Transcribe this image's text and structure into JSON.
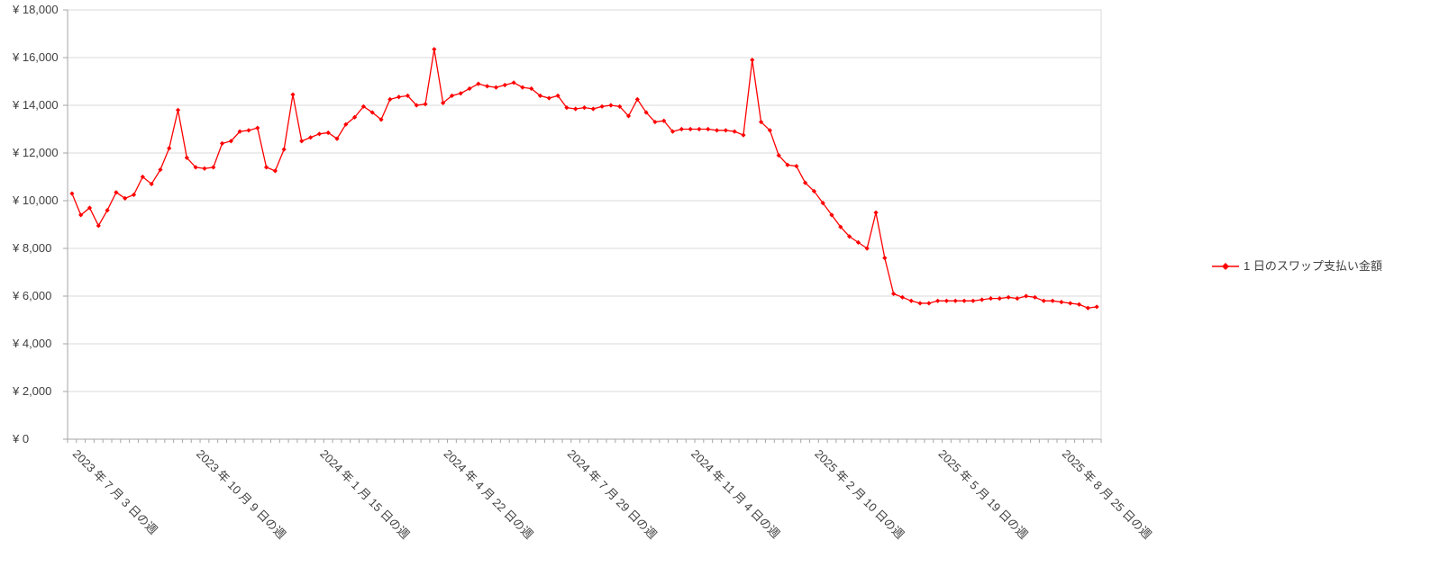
{
  "chart_data": {
    "type": "line",
    "title": "",
    "series": [
      {
        "name": "1 日のスワップ支払い金額",
        "color": "#ff0000",
        "marker": "diamond",
        "values": [
          10300,
          9400,
          9700,
          8950,
          9600,
          10350,
          10100,
          10250,
          11000,
          10700,
          11300,
          12200,
          13800,
          11800,
          11400,
          11350,
          11400,
          12400,
          12500,
          12900,
          12950,
          13050,
          11400,
          11250,
          12150,
          14450,
          12500,
          12650,
          12800,
          12850,
          12600,
          13200,
          13500,
          13950,
          13700,
          13400,
          14250,
          14350,
          14400,
          14000,
          14050,
          16350,
          14100,
          14400,
          14500,
          14700,
          14900,
          14800,
          14750,
          14850,
          14950,
          14750,
          14700,
          14400,
          14300,
          14400,
          13900,
          13850,
          13900,
          13850,
          13950,
          14000,
          13950,
          13550,
          14250,
          13700,
          13300,
          13350,
          12900,
          13000,
          13000,
          13000,
          13000,
          12950,
          12950,
          12900,
          12750,
          15900,
          13300,
          12950,
          11900,
          11500,
          11450,
          10750,
          10400,
          9900,
          9400,
          8900,
          8500,
          8250,
          8000,
          9500,
          7600,
          6100,
          5950,
          5800,
          5700,
          5700,
          5800,
          5800,
          5800,
          5800,
          5800,
          5850,
          5900,
          5900,
          5950,
          5900,
          6000,
          5950,
          5800,
          5800,
          5750,
          5700,
          5650,
          5500,
          5550
        ]
      }
    ],
    "x_axis": {
      "tick_labels": [
        "2023 年 7 月 3 日の週",
        "2023 年 10 月 9 日の週",
        "2024 年 1 月 15 日の週",
        "2024 年 4 月 22 日の週",
        "2024 年 7 月 29 日の週",
        "2024 年 11 月 4 日の週",
        "2025 年 2 月 10 日の週",
        "2025 年 5 月 19 日の週",
        "2025 年 8 月 25 日の週"
      ],
      "tick_label_indices": [
        0,
        14,
        28,
        42,
        56,
        70,
        84,
        98,
        112
      ],
      "n_points": 117,
      "label_rotation_deg": 45
    },
    "y_axis": {
      "min": 0,
      "max": 18000,
      "step": 2000,
      "tick_labels": [
        "¥ 0",
        "¥ 2,000",
        "¥ 4,000",
        "¥ 6,000",
        "¥ 8,000",
        "¥ 10,000",
        "¥ 12,000",
        "¥ 14,000",
        "¥ 16,000",
        "¥ 18,000"
      ]
    },
    "legend": {
      "position": "right",
      "label": "1 日のスワップ支払い金額"
    },
    "grid": {
      "horizontal": true,
      "color": "#d9d9d9"
    },
    "axis_color": "#a6a6a6",
    "text_color": "#404040",
    "background": "#ffffff"
  }
}
